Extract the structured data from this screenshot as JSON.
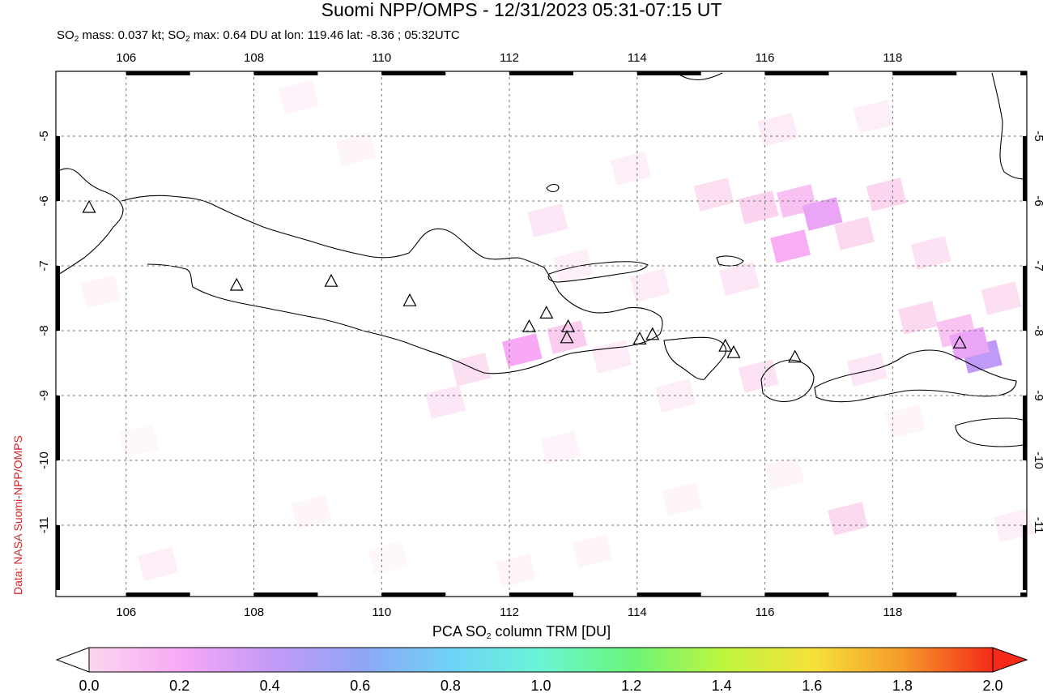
{
  "title": "Suomi NPP/OMPS - 12/31/2023 05:31-07:15 UT",
  "subtitle": {
    "mass_prefix": "SO",
    "mass_sub": "2",
    "mass_text": " mass: 0.037 kt; SO",
    "max_sub": "2",
    "max_text": " max: 0.64 DU at lon: 119.46 lat: -8.36 ; 05:32UTC"
  },
  "credit": "Data: NASA Suomi-NPP/OMPS",
  "colorbar": {
    "title_prefix": "PCA SO",
    "title_sub": "2",
    "title_suffix": " column TRM [DU]",
    "ticks": [
      "0.0",
      "0.2",
      "0.4",
      "0.6",
      "0.8",
      "1.0",
      "1.2",
      "1.4",
      "1.6",
      "1.8",
      "2.0"
    ],
    "range": [
      0.0,
      2.0
    ],
    "colors": [
      "#ffffff",
      "#fbd6ee",
      "#f7a9f5",
      "#c49af7",
      "#8fa6f5",
      "#6fd2f7",
      "#6af5d6",
      "#6af579",
      "#bdf53f",
      "#f5e23a",
      "#f59a2a",
      "#f52a1a"
    ]
  },
  "map": {
    "lon_range": [
      104.9,
      120.1
    ],
    "lat_range": [
      -12.1,
      -4.0
    ],
    "lon_ticks": [
      "106",
      "108",
      "110",
      "112",
      "114",
      "116",
      "118"
    ],
    "lat_ticks": [
      "-5",
      "-6",
      "-7",
      "-8",
      "-9",
      "-10",
      "-11"
    ],
    "volcanoes": [
      {
        "lon": 105.42,
        "lat": -6.1
      },
      {
        "lon": 107.73,
        "lat": -7.3
      },
      {
        "lon": 109.21,
        "lat": -7.24
      },
      {
        "lon": 110.44,
        "lat": -7.54
      },
      {
        "lon": 112.31,
        "lat": -7.94
      },
      {
        "lon": 112.58,
        "lat": -7.73
      },
      {
        "lon": 112.92,
        "lat": -7.94
      },
      {
        "lon": 112.9,
        "lat": -8.11
      },
      {
        "lon": 114.04,
        "lat": -8.13
      },
      {
        "lon": 114.24,
        "lat": -8.06
      },
      {
        "lon": 115.38,
        "lat": -8.24
      },
      {
        "lon": 115.51,
        "lat": -8.34
      },
      {
        "lon": 116.47,
        "lat": -8.41
      },
      {
        "lon": 119.05,
        "lat": -8.19
      }
    ],
    "so2_pixels": [
      {
        "lon": 108.7,
        "lat": -4.4,
        "v": 0.06
      },
      {
        "lon": 109.6,
        "lat": -5.2,
        "v": 0.05
      },
      {
        "lon": 112.6,
        "lat": -6.3,
        "v": 0.12
      },
      {
        "lon": 113.9,
        "lat": -5.5,
        "v": 0.08
      },
      {
        "lon": 115.2,
        "lat": -5.9,
        "v": 0.15
      },
      {
        "lon": 115.9,
        "lat": -6.1,
        "v": 0.22
      },
      {
        "lon": 116.5,
        "lat": -6.0,
        "v": 0.3
      },
      {
        "lon": 116.9,
        "lat": -6.2,
        "v": 0.45
      },
      {
        "lon": 116.4,
        "lat": -6.7,
        "v": 0.38
      },
      {
        "lon": 117.4,
        "lat": -6.5,
        "v": 0.18
      },
      {
        "lon": 117.9,
        "lat": -5.9,
        "v": 0.2
      },
      {
        "lon": 118.6,
        "lat": -6.8,
        "v": 0.14
      },
      {
        "lon": 115.6,
        "lat": -7.2,
        "v": 0.12
      },
      {
        "lon": 116.2,
        "lat": -4.9,
        "v": 0.1
      },
      {
        "lon": 117.7,
        "lat": -4.7,
        "v": 0.08
      },
      {
        "lon": 112.2,
        "lat": -8.3,
        "v": 0.4
      },
      {
        "lon": 112.9,
        "lat": -8.1,
        "v": 0.24
      },
      {
        "lon": 111.4,
        "lat": -8.6,
        "v": 0.15
      },
      {
        "lon": 111.0,
        "lat": -9.1,
        "v": 0.12
      },
      {
        "lon": 113.6,
        "lat": -8.4,
        "v": 0.1
      },
      {
        "lon": 114.6,
        "lat": -9.0,
        "v": 0.08
      },
      {
        "lon": 115.9,
        "lat": -8.7,
        "v": 0.14
      },
      {
        "lon": 117.6,
        "lat": -8.6,
        "v": 0.12
      },
      {
        "lon": 118.4,
        "lat": -7.8,
        "v": 0.18
      },
      {
        "lon": 119.0,
        "lat": -8.0,
        "v": 0.28
      },
      {
        "lon": 119.4,
        "lat": -8.4,
        "v": 0.62
      },
      {
        "lon": 119.2,
        "lat": -8.2,
        "v": 0.45
      },
      {
        "lon": 119.7,
        "lat": -7.5,
        "v": 0.15
      },
      {
        "lon": 118.2,
        "lat": -9.4,
        "v": 0.05
      },
      {
        "lon": 117.3,
        "lat": -10.9,
        "v": 0.18
      },
      {
        "lon": 119.9,
        "lat": -11.0,
        "v": 0.08
      },
      {
        "lon": 116.3,
        "lat": -10.2,
        "v": 0.05
      },
      {
        "lon": 114.7,
        "lat": -10.6,
        "v": 0.05
      },
      {
        "lon": 113.3,
        "lat": -11.4,
        "v": 0.05
      },
      {
        "lon": 112.1,
        "lat": -11.7,
        "v": 0.05
      },
      {
        "lon": 110.1,
        "lat": -11.5,
        "v": 0.04
      },
      {
        "lon": 108.9,
        "lat": -10.8,
        "v": 0.05
      },
      {
        "lon": 106.5,
        "lat": -11.6,
        "v": 0.08
      },
      {
        "lon": 106.2,
        "lat": -9.7,
        "v": 0.04
      },
      {
        "lon": 105.6,
        "lat": -7.4,
        "v": 0.05
      },
      {
        "lon": 112.8,
        "lat": -9.8,
        "v": 0.06
      },
      {
        "lon": 114.2,
        "lat": -7.3,
        "v": 0.1
      },
      {
        "lon": 113.0,
        "lat": -7.0,
        "v": 0.08
      }
    ]
  }
}
